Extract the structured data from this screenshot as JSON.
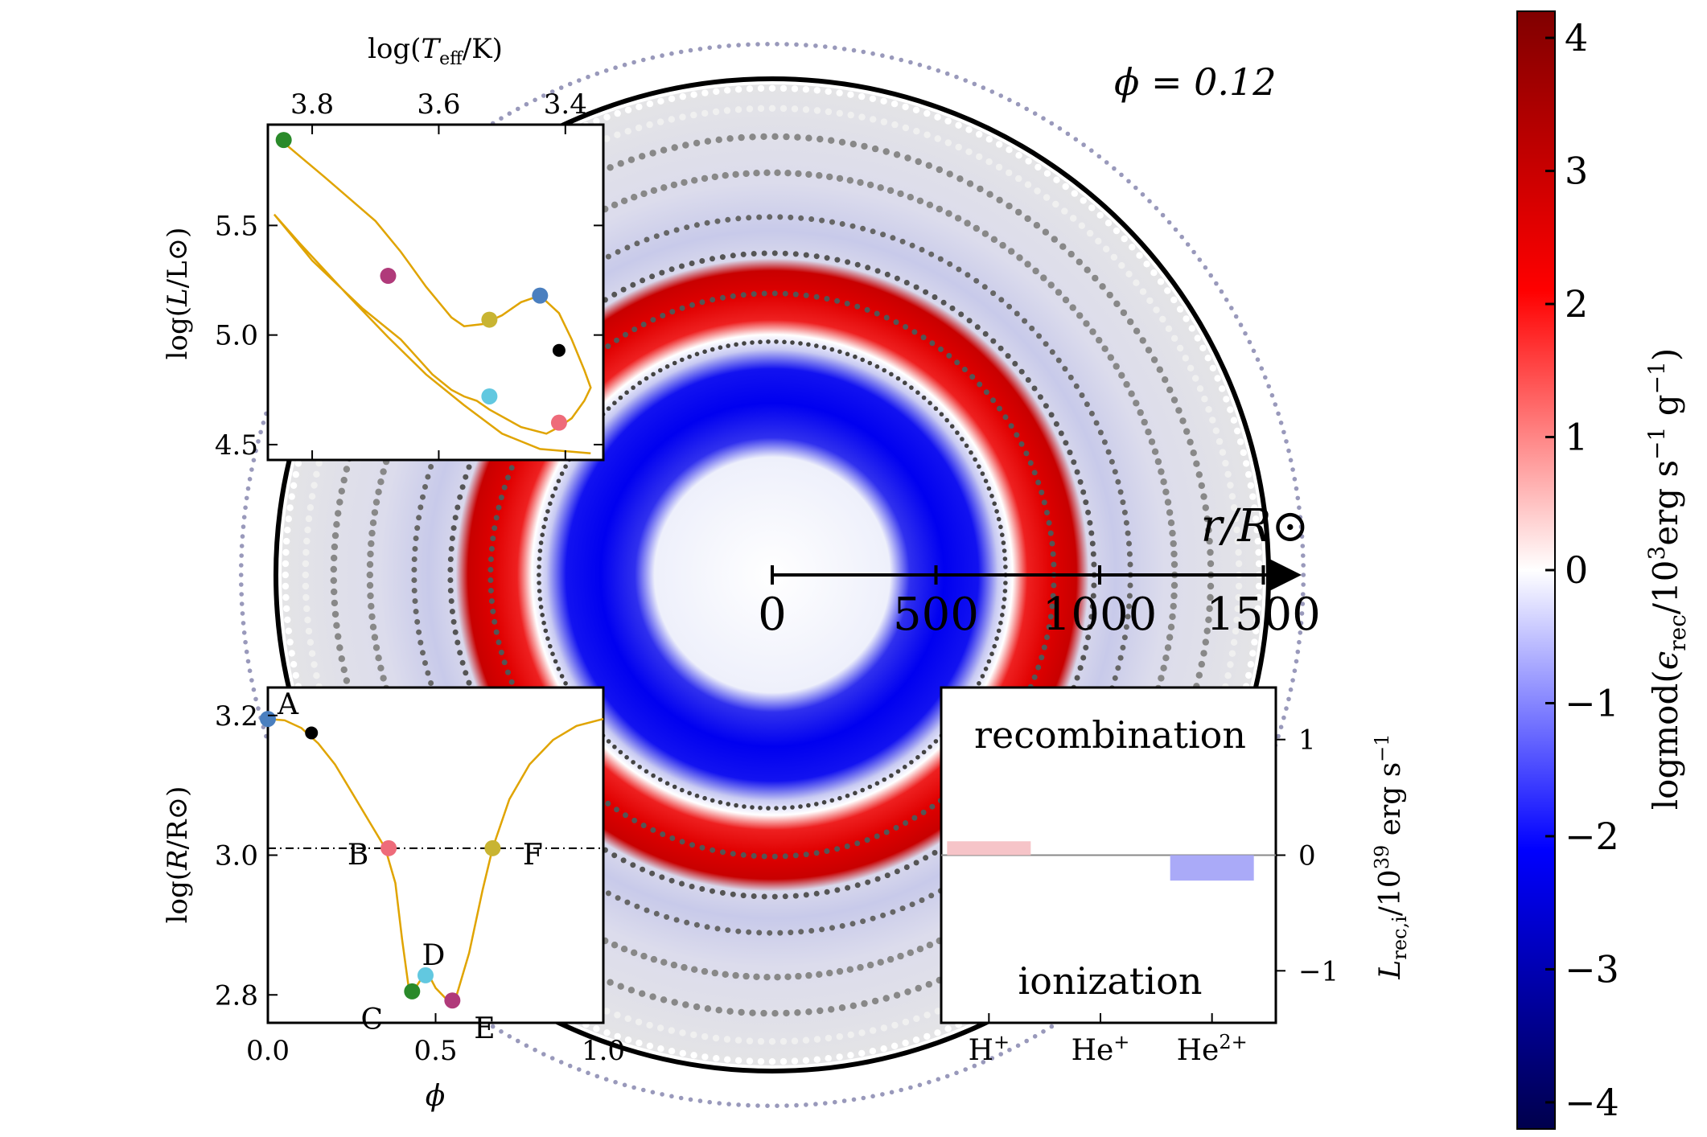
{
  "phase_label": "ϕ = 0.12",
  "colors": {
    "track": "#e0a400",
    "A": "#4a7fbf",
    "B": "#ee6b7a",
    "C": "#2a8a2a",
    "D": "#62c8e0",
    "E": "#b03a7a",
    "F": "#c8b432",
    "black_point": "#000000",
    "rec_bar": "#f6c4c8",
    "ion_bar": "#aaaaf8"
  },
  "chart_data": [
    {
      "id": "main_disk",
      "type": "heatmap",
      "description_axis": "r/R⊙",
      "xlabel": "r/R⊙",
      "xticks": [
        "0",
        "500",
        "1000",
        "1500"
      ],
      "xtick_values": [
        0,
        500,
        1000,
        1500
      ],
      "outer_radius_rsun": 1500,
      "shells": [
        {
          "r_in": 0,
          "r_out": 400,
          "value": -0.2
        },
        {
          "r_in": 400,
          "r_out": 680,
          "value": -2.6
        },
        {
          "r_in": 680,
          "r_out": 750,
          "value": -1.0
        },
        {
          "r_in": 750,
          "r_out": 960,
          "value": 2.6
        },
        {
          "r_in": 960,
          "r_out": 1200,
          "value": -0.5
        },
        {
          "r_in": 1200,
          "r_out": 1500,
          "value": 0.0
        }
      ]
    },
    {
      "id": "colorbar",
      "type": "colorbar",
      "label": "logmod(ϵrec/10³erg s⁻¹ g⁻¹)",
      "label_main": "logmod(",
      "label_eps": "ϵ",
      "label_sub": "rec",
      "label_rest": "/10",
      "label_sup3": "3",
      "label_erg": "erg s",
      "label_m1": "−1",
      "label_g": " g",
      "label_m1b": "−1",
      "label_close": ")",
      "range": [
        -4.2,
        4.2
      ],
      "ticks": [
        4,
        3,
        2,
        1,
        0,
        -1,
        -2,
        -3,
        -4
      ],
      "tick_labels": [
        "4",
        "3",
        "2",
        "1",
        "0",
        "−1",
        "−2",
        "−3",
        "−4"
      ],
      "colormap": "seismic"
    },
    {
      "id": "hr_diagram",
      "type": "line",
      "xlabel_top": "log(Teff/K)",
      "xlabel_parts": {
        "pre": "log(",
        "T": "T",
        "sub": "eff",
        "post": "/K)"
      },
      "ylabel_parts": {
        "pre": "log(",
        "L": "L",
        "post": "/L⊙)"
      },
      "ylabel": "log(L/L⊙)",
      "xlim": [
        3.87,
        3.34
      ],
      "ylim": [
        4.43,
        5.96
      ],
      "xticks": [
        3.8,
        3.6,
        3.4
      ],
      "xtick_labels": [
        "3.8",
        "3.6",
        "3.4"
      ],
      "yticks": [
        4.5,
        5.0,
        5.5
      ],
      "ytick_labels": [
        "4.5",
        "5.0",
        "5.5"
      ],
      "track": [
        [
          3.85,
          5.89
        ],
        [
          3.78,
          5.72
        ],
        [
          3.7,
          5.52
        ],
        [
          3.66,
          5.38
        ],
        [
          3.62,
          5.22
        ],
        [
          3.58,
          5.08
        ],
        [
          3.56,
          5.04
        ],
        [
          3.53,
          5.05
        ],
        [
          3.5,
          5.09
        ],
        [
          3.47,
          5.15
        ],
        [
          3.44,
          5.18
        ],
        [
          3.41,
          5.1
        ],
        [
          3.39,
          4.98
        ],
        [
          3.37,
          4.84
        ],
        [
          3.36,
          4.76
        ],
        [
          3.37,
          4.7
        ],
        [
          3.39,
          4.62
        ],
        [
          3.41,
          4.58
        ],
        [
          3.43,
          4.55
        ],
        [
          3.47,
          4.58
        ],
        [
          3.52,
          4.66
        ],
        [
          3.54,
          4.7
        ],
        [
          3.56,
          4.72
        ],
        [
          3.58,
          4.75
        ],
        [
          3.61,
          4.82
        ],
        [
          3.66,
          4.98
        ],
        [
          3.72,
          5.12
        ],
        [
          3.8,
          5.34
        ],
        [
          3.86,
          5.55
        ],
        [
          3.82,
          5.42
        ],
        [
          3.74,
          5.17
        ],
        [
          3.68,
          4.99
        ],
        [
          3.62,
          4.82
        ],
        [
          3.56,
          4.68
        ],
        [
          3.5,
          4.55
        ],
        [
          3.44,
          4.48
        ],
        [
          3.36,
          4.46
        ]
      ],
      "points": [
        {
          "name": "C",
          "x": 3.845,
          "y": 5.89,
          "color": "#2a8a2a"
        },
        {
          "name": "E",
          "x": 3.68,
          "y": 5.27,
          "color": "#b03a7a"
        },
        {
          "name": "F",
          "x": 3.52,
          "y": 5.07,
          "color": "#c8b432"
        },
        {
          "name": "A",
          "x": 3.44,
          "y": 5.18,
          "color": "#4a7fbf"
        },
        {
          "name": "black",
          "x": 3.41,
          "y": 4.93,
          "color": "#000000"
        },
        {
          "name": "D",
          "x": 3.52,
          "y": 4.72,
          "color": "#62c8e0"
        },
        {
          "name": "B",
          "x": 3.41,
          "y": 4.6,
          "color": "#ee6b7a"
        }
      ]
    },
    {
      "id": "radius_phase",
      "type": "line",
      "xlabel": "ϕ",
      "ylabel": "log(R/R⊙)",
      "ylabel_parts": {
        "pre": "log(",
        "R": "R",
        "post": "/R⊙)"
      },
      "xlim": [
        0.0,
        1.0
      ],
      "ylim": [
        2.76,
        3.24
      ],
      "xticks": [
        0.0,
        0.5,
        1.0
      ],
      "xtick_labels": [
        "0.0",
        "0.5",
        "1.0"
      ],
      "yticks": [
        2.8,
        3.0,
        3.2
      ],
      "ytick_labels": [
        "2.8",
        "3.0",
        "3.2"
      ],
      "hline": 3.01,
      "curve": [
        [
          0.0,
          3.195
        ],
        [
          0.05,
          3.193
        ],
        [
          0.1,
          3.182
        ],
        [
          0.15,
          3.16
        ],
        [
          0.2,
          3.13
        ],
        [
          0.25,
          3.09
        ],
        [
          0.3,
          3.05
        ],
        [
          0.35,
          3.01
        ],
        [
          0.38,
          2.96
        ],
        [
          0.4,
          2.88
        ],
        [
          0.42,
          2.81
        ],
        [
          0.44,
          2.81
        ],
        [
          0.46,
          2.825
        ],
        [
          0.48,
          2.828
        ],
        [
          0.5,
          2.81
        ],
        [
          0.53,
          2.795
        ],
        [
          0.56,
          2.795
        ],
        [
          0.6,
          2.86
        ],
        [
          0.64,
          2.95
        ],
        [
          0.67,
          3.01
        ],
        [
          0.72,
          3.08
        ],
        [
          0.78,
          3.13
        ],
        [
          0.85,
          3.165
        ],
        [
          0.92,
          3.185
        ],
        [
          1.0,
          3.195
        ]
      ],
      "points": [
        {
          "name": "A",
          "x": 0.0,
          "y": 3.195,
          "color": "#4a7fbf"
        },
        {
          "name": "black",
          "x": 0.13,
          "y": 3.175,
          "color": "#000000"
        },
        {
          "name": "B",
          "x": 0.36,
          "y": 3.01,
          "color": "#ee6b7a"
        },
        {
          "name": "C",
          "x": 0.43,
          "y": 2.805,
          "color": "#2a8a2a"
        },
        {
          "name": "D",
          "x": 0.47,
          "y": 2.828,
          "color": "#62c8e0"
        },
        {
          "name": "E",
          "x": 0.55,
          "y": 2.792,
          "color": "#b03a7a"
        },
        {
          "name": "F",
          "x": 0.67,
          "y": 3.01,
          "color": "#c8b432"
        }
      ],
      "point_labels": [
        "A",
        "B",
        "C",
        "D",
        "E",
        "F"
      ]
    },
    {
      "id": "recombination_bars",
      "type": "bar",
      "categories": [
        "H⁺",
        "He⁺",
        "He²⁺"
      ],
      "cat_parts": [
        {
          "base": "H",
          "sup": "+"
        },
        {
          "base": "He",
          "sup": "+"
        },
        {
          "base": "He",
          "sup": "2+"
        }
      ],
      "values": [
        0.12,
        0.0,
        -0.22
      ],
      "ylim": [
        -1.45,
        1.45
      ],
      "yticks": [
        1,
        0,
        -1
      ],
      "ytick_labels": [
        "1",
        "0",
        "−1"
      ],
      "ylabel": "Lrec,i/10³⁹ erg s⁻¹",
      "ylabel_parts": {
        "L": "L",
        "sub": "rec,i",
        "mid": "/10",
        "sup": "39",
        "unit": " erg s",
        "exp": "−1"
      },
      "text_top": "recombination",
      "text_bottom": "ionization"
    }
  ]
}
